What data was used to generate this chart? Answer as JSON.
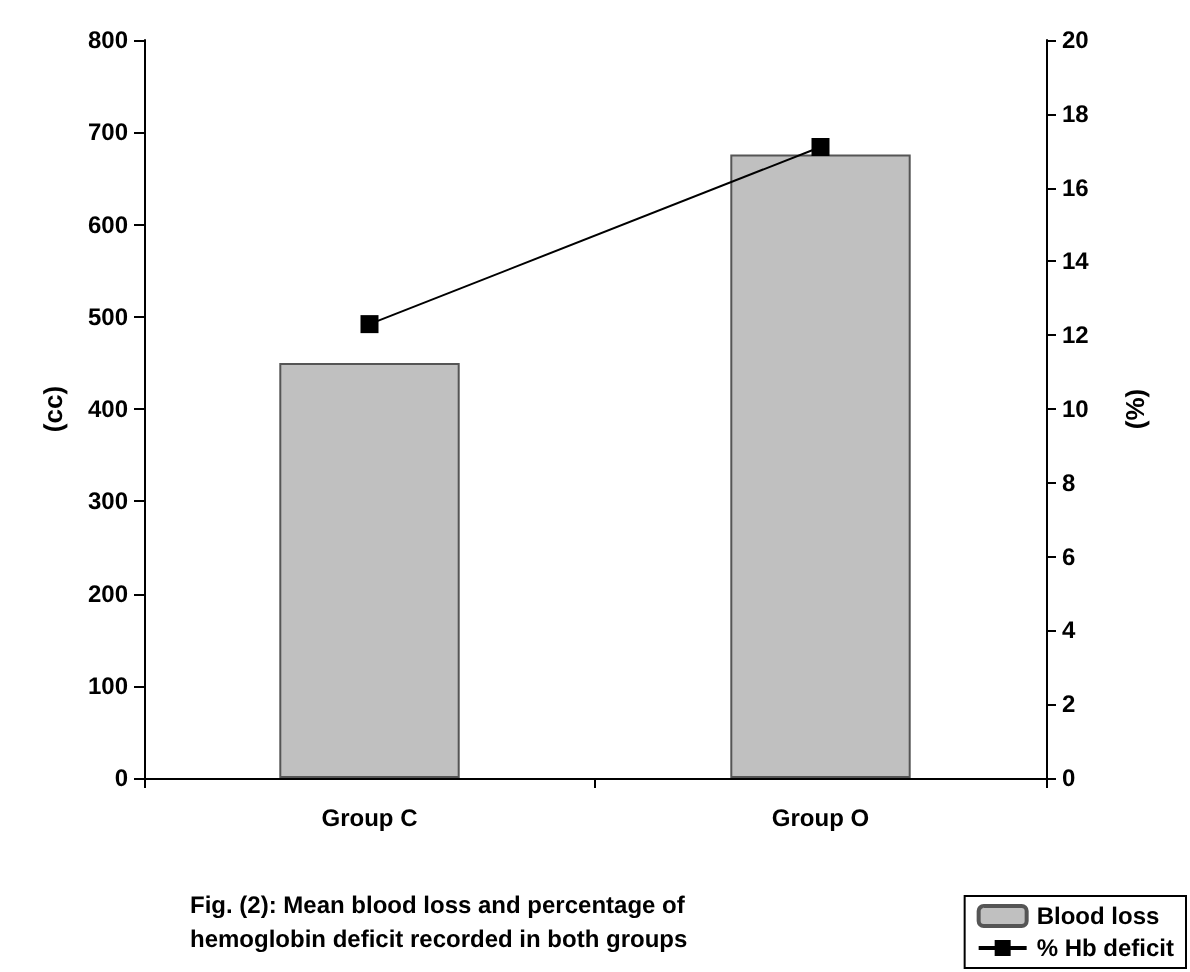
{
  "chart_data": {
    "type": "bar",
    "categories": [
      "Group C",
      "Group O"
    ],
    "series": [
      {
        "name": "Blood loss",
        "color": "#c0c0c0",
        "values": [
          450,
          676
        ]
      },
      {
        "name": "% Hb deficit",
        "type": "line",
        "axis": "y2",
        "color": "#000000",
        "values": [
          12.3,
          17.1
        ],
        "marker": "square"
      }
    ],
    "ylabel": "(cc)",
    "y2label": "(%)",
    "ylim": [
      0,
      800
    ],
    "yticks": [
      0,
      100,
      200,
      300,
      400,
      500,
      600,
      700,
      800
    ],
    "y2lim": [
      0,
      20
    ],
    "y2ticks": [
      0,
      2,
      4,
      6,
      8,
      10,
      12,
      14,
      16,
      18,
      20
    ],
    "annotations": [
      "Fig. (2): Mean blood loss and percentage of hemoglobin deficit recorded in both groups"
    ],
    "legend": "bottom right",
    "grid": false
  }
}
